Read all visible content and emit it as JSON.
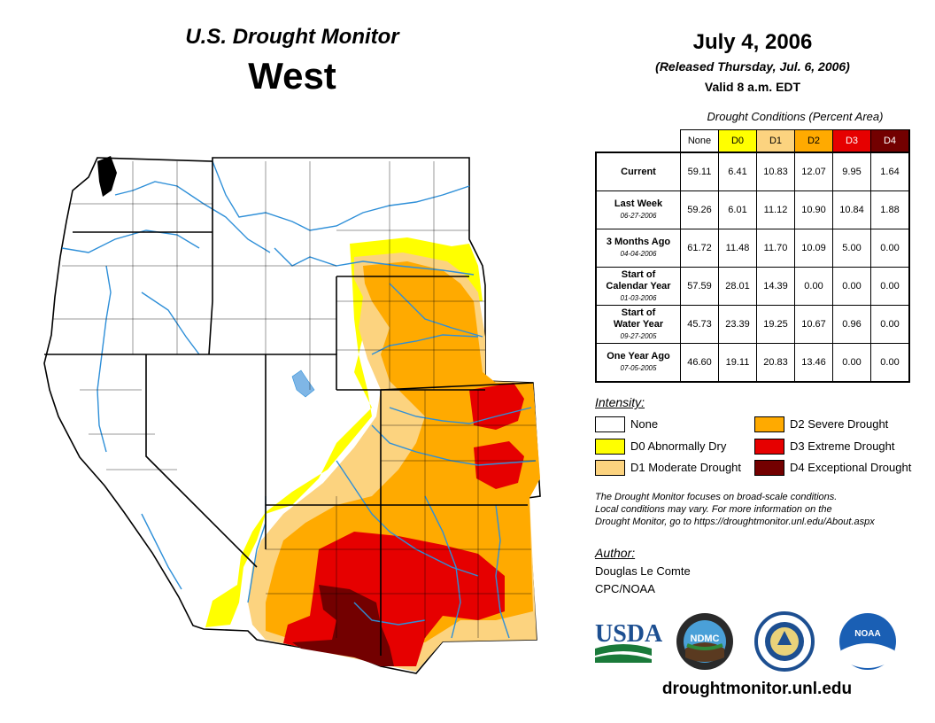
{
  "header": {
    "title": "U.S. Drought Monitor",
    "region": "West",
    "date": "July 4, 2006",
    "released": "(Released Thursday, Jul. 6, 2006)",
    "valid": "Valid 8 a.m. EDT"
  },
  "table": {
    "caption": "Drought Conditions (Percent Area)",
    "columns": [
      {
        "label": "None",
        "color": "#ffffff"
      },
      {
        "label": "D0",
        "color": "#ffff00"
      },
      {
        "label": "D1",
        "color": "#fcd37f"
      },
      {
        "label": "D2",
        "color": "#ffaa00"
      },
      {
        "label": "D3",
        "color": "#e60000"
      },
      {
        "label": "D4",
        "color": "#730000"
      }
    ],
    "rows": [
      {
        "label1": "Current",
        "label2": "",
        "date": "",
        "values": [
          "59.11",
          "6.41",
          "10.83",
          "12.07",
          "9.95",
          "1.64"
        ]
      },
      {
        "label1": "Last Week",
        "label2": "",
        "date": "06-27-2006",
        "values": [
          "59.26",
          "6.01",
          "11.12",
          "10.90",
          "10.84",
          "1.88"
        ]
      },
      {
        "label1": "3 Months Ago",
        "label2": "",
        "date": "04-04-2006",
        "values": [
          "61.72",
          "11.48",
          "11.70",
          "10.09",
          "5.00",
          "0.00"
        ]
      },
      {
        "label1": "Start of",
        "label2": "Calendar Year",
        "date": "01-03-2006",
        "values": [
          "57.59",
          "28.01",
          "14.39",
          "0.00",
          "0.00",
          "0.00"
        ]
      },
      {
        "label1": "Start of",
        "label2": "Water Year",
        "date": "09-27-2005",
        "values": [
          "45.73",
          "23.39",
          "19.25",
          "10.67",
          "0.96",
          "0.00"
        ]
      },
      {
        "label1": "One Year Ago",
        "label2": "",
        "date": "07-05-2005",
        "values": [
          "46.60",
          "19.11",
          "20.83",
          "13.46",
          "0.00",
          "0.00"
        ]
      }
    ]
  },
  "legend": {
    "title": "Intensity:",
    "items": [
      {
        "label": "None",
        "color": "#ffffff"
      },
      {
        "label": "D0 Abnormally Dry",
        "color": "#ffff00"
      },
      {
        "label": "D1 Moderate Drought",
        "color": "#fcd37f"
      },
      {
        "label": "D2 Severe Drought",
        "color": "#ffaa00"
      },
      {
        "label": "D3 Extreme Drought",
        "color": "#e60000"
      },
      {
        "label": "D4 Exceptional Drought",
        "color": "#730000"
      }
    ]
  },
  "note": {
    "line1": "The Drought Monitor focuses on broad-scale conditions.",
    "line2": "Local conditions may vary. For more information on the",
    "line3": "Drought Monitor, go to https://droughtmonitor.unl.edu/About.aspx"
  },
  "author": {
    "title": "Author:",
    "name": "Douglas Le Comte",
    "org": "CPC/NOAA"
  },
  "logos": {
    "usda": "USDA",
    "ndmc": "NDMC",
    "noaa": "NOAA"
  },
  "footer": {
    "url": "droughtmonitor.unl.edu"
  },
  "colors": {
    "river": "#2e8fd8",
    "lake": "#7fb6e6",
    "boundary": "#000000"
  }
}
